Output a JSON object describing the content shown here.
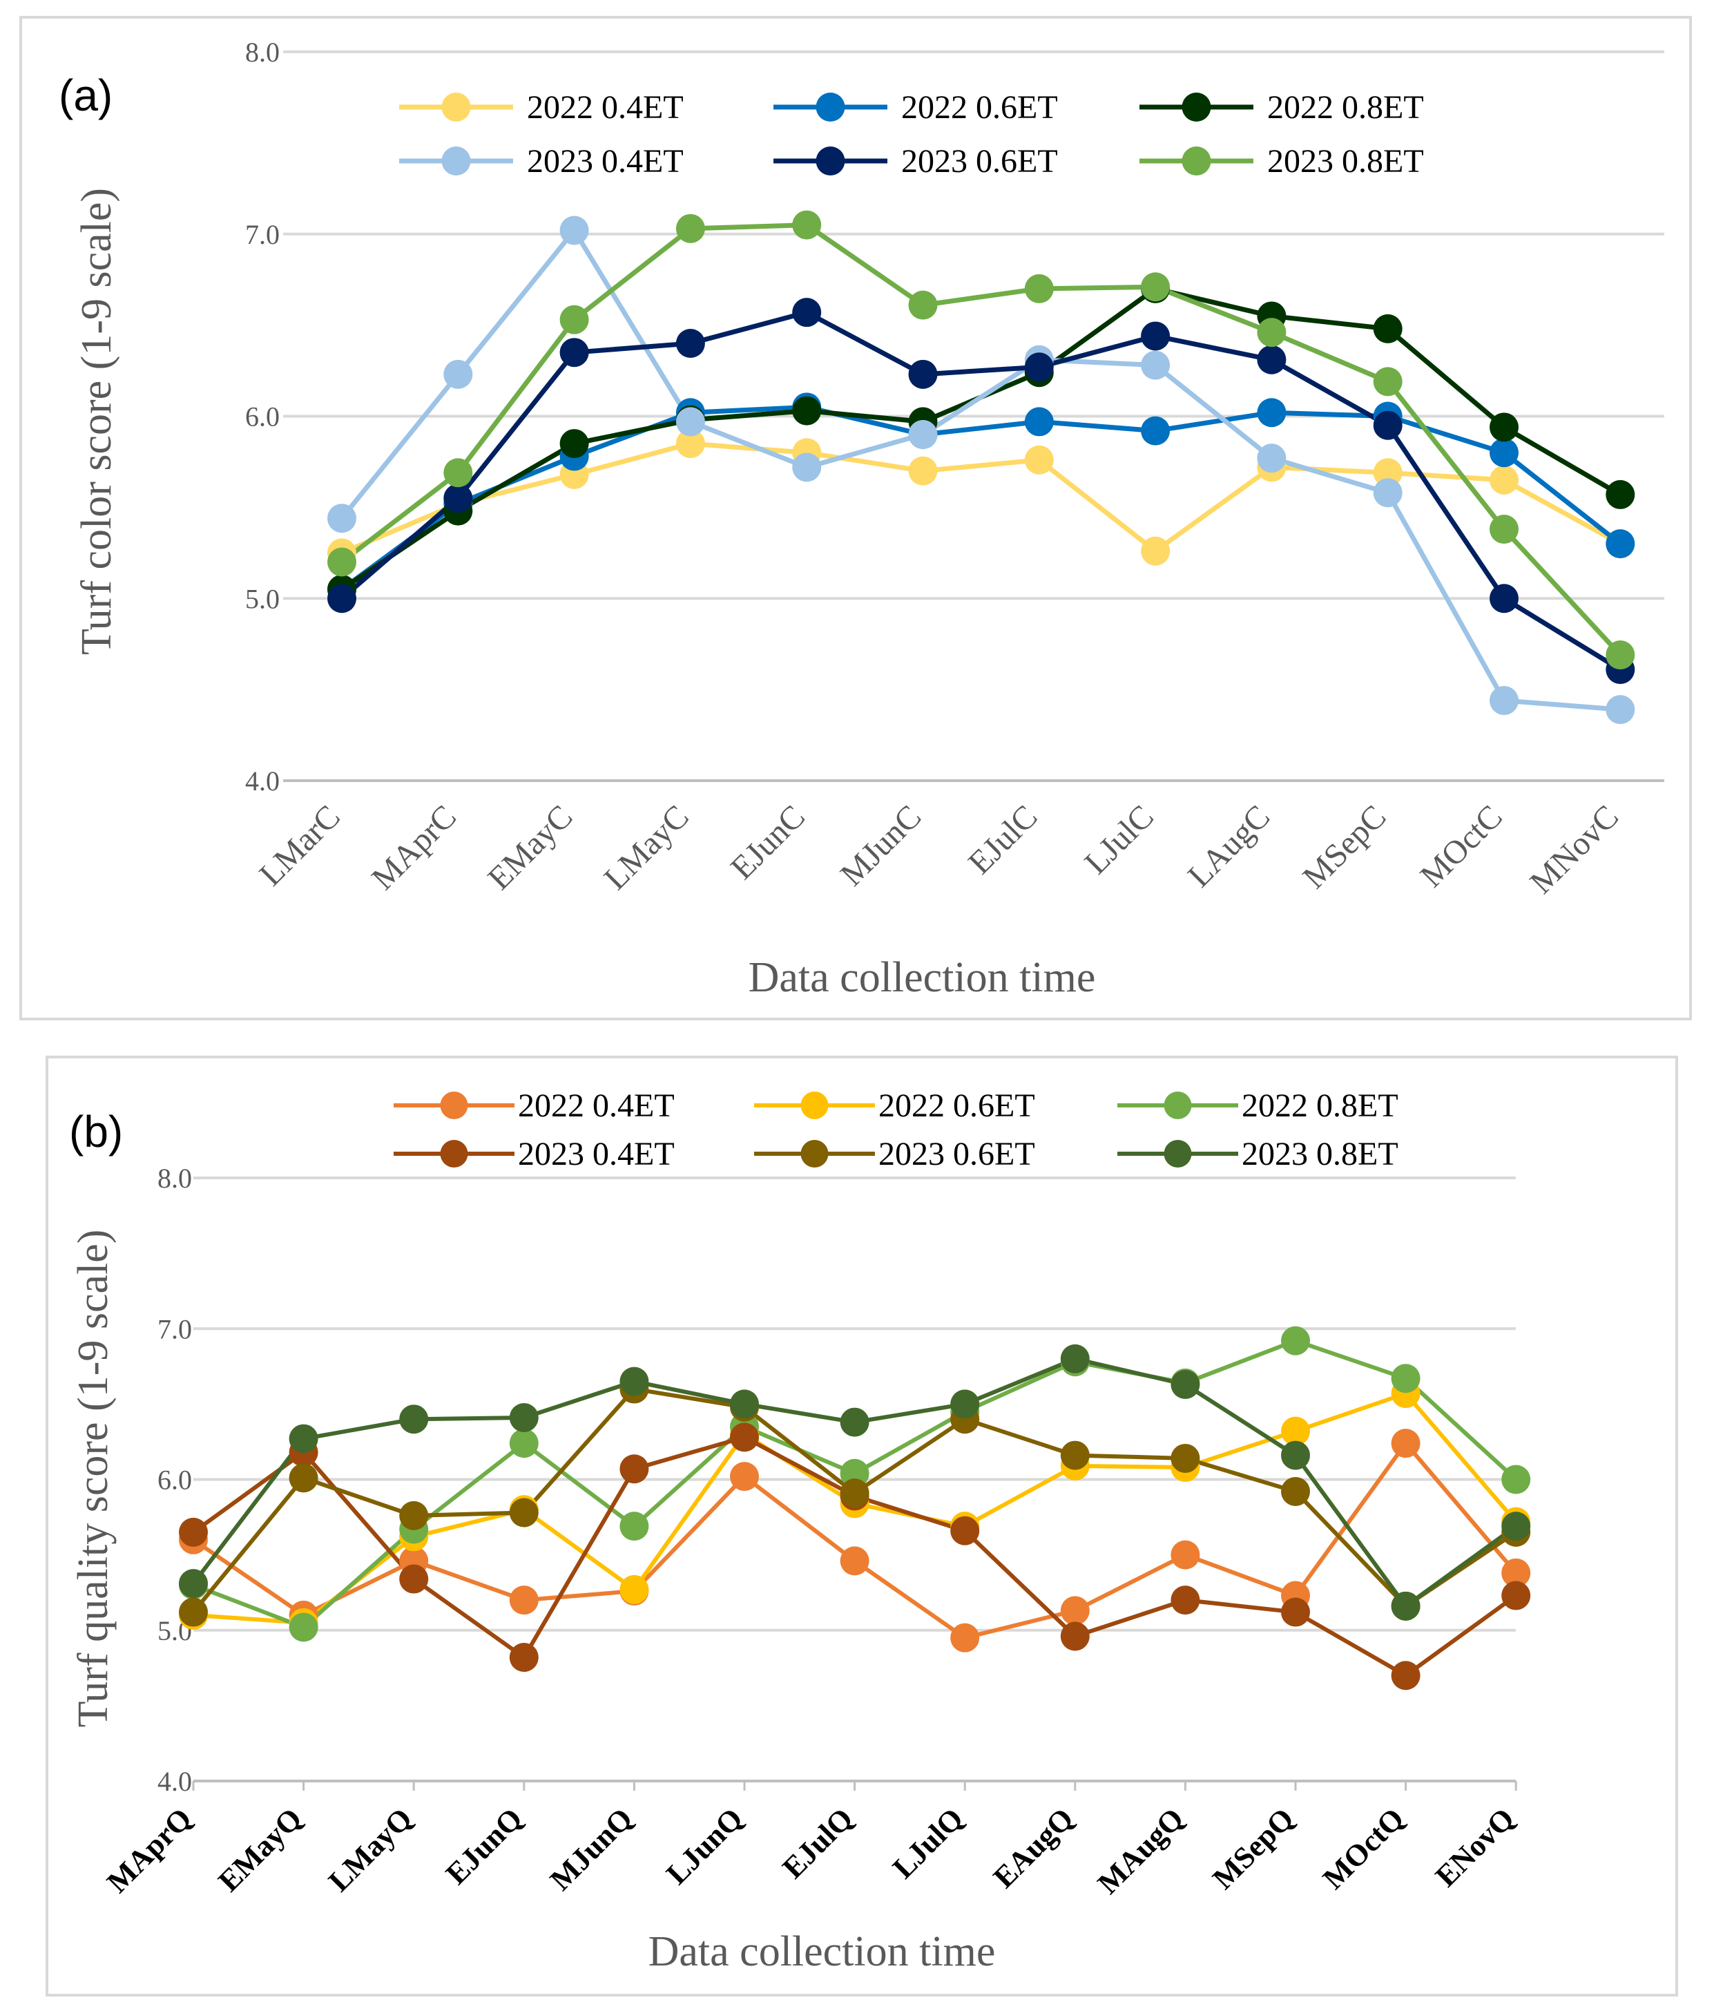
{
  "chart_data": [
    {
      "type": "line",
      "panel_label": "(a)",
      "xlabel": "Data collection time",
      "ylabel": "Turf color score (1-9 scale)",
      "ylim": [
        4.0,
        8.0
      ],
      "yticks": [
        "4.0",
        "5.0",
        "6.0",
        "7.0",
        "8.0"
      ],
      "grid": true,
      "legend_position": "top",
      "categories": [
        "LMarC",
        "MAprC",
        "EMayC",
        "LMayC",
        "EJunC",
        "MJunC",
        "EJulC",
        "LJulC",
        "LAugC",
        "MSepC",
        "MOctC",
        "MNovC"
      ],
      "series": [
        {
          "name": "2022 0.4ET",
          "color": "#FFD966",
          "values": [
            5.25,
            5.52,
            5.68,
            5.85,
            5.8,
            5.7,
            5.76,
            5.26,
            5.72,
            5.69,
            5.65,
            5.3
          ]
        },
        {
          "name": "2022 0.6ET",
          "color": "#0070C0",
          "values": [
            5.05,
            5.52,
            5.78,
            6.02,
            6.05,
            5.9,
            5.97,
            5.92,
            6.02,
            6.0,
            5.8,
            5.3
          ]
        },
        {
          "name": "2022 0.8ET",
          "color": "#003300",
          "values": [
            5.05,
            5.48,
            5.85,
            5.98,
            6.03,
            5.97,
            6.24,
            6.7,
            6.55,
            6.48,
            5.94,
            5.57
          ]
        },
        {
          "name": "2023 0.4ET",
          "color": "#9DC3E6",
          "values": [
            5.44,
            6.23,
            7.02,
            5.97,
            5.72,
            5.9,
            6.31,
            6.28,
            5.77,
            5.58,
            4.44,
            4.39
          ]
        },
        {
          "name": "2023 0.6ET",
          "color": "#002060",
          "values": [
            5.0,
            5.55,
            6.35,
            6.4,
            6.57,
            6.23,
            6.27,
            6.44,
            6.31,
            5.95,
            5.0,
            4.61
          ]
        },
        {
          "name": "2023 0.8ET",
          "color": "#70AD47",
          "values": [
            5.2,
            5.69,
            6.53,
            7.03,
            7.05,
            6.61,
            6.7,
            6.71,
            6.46,
            6.19,
            5.38,
            4.69
          ]
        }
      ]
    },
    {
      "type": "line",
      "panel_label": "(b)",
      "xlabel": "Data collection time",
      "ylabel": "Turf quality score (1-9 scale)",
      "ylim": [
        4.0,
        8.0
      ],
      "yticks": [
        "4.0",
        "5.0",
        "6.0",
        "7.0",
        "8.0"
      ],
      "grid": true,
      "legend_position": "top",
      "categories": [
        "MAprQ",
        "EMayQ",
        "LMayQ",
        "EJunQ",
        "MJunQ",
        "LJunQ",
        "EJulQ",
        "LJulQ",
        "EAugQ",
        "MAugQ",
        "MSepQ",
        "MOctQ",
        "ENovQ"
      ],
      "series": [
        {
          "name": "2022 0.4ET",
          "color": "#ED7D31",
          "values": [
            5.6,
            5.1,
            5.46,
            5.2,
            5.26,
            6.02,
            5.46,
            4.95,
            5.13,
            5.5,
            5.23,
            6.24,
            5.38
          ]
        },
        {
          "name": "2022 0.6ET",
          "color": "#FFC000",
          "values": [
            5.1,
            5.05,
            5.62,
            5.8,
            5.27,
            6.3,
            5.84,
            5.69,
            6.09,
            6.08,
            6.32,
            6.57,
            5.72
          ]
        },
        {
          "name": "2022 0.8ET",
          "color": "#70AD47",
          "values": [
            5.3,
            5.02,
            5.67,
            6.24,
            5.69,
            6.35,
            6.04,
            6.45,
            6.78,
            6.64,
            6.92,
            6.67,
            6.0
          ]
        },
        {
          "name": "2023 0.4ET",
          "color": "#9E480E",
          "values": [
            5.65,
            6.18,
            5.34,
            4.82,
            6.07,
            6.28,
            5.89,
            5.66,
            4.96,
            5.2,
            5.12,
            4.7,
            5.23
          ]
        },
        {
          "name": "2023 0.6ET",
          "color": "#806000",
          "values": [
            5.12,
            6.01,
            5.76,
            5.78,
            6.6,
            6.48,
            5.91,
            6.4,
            6.16,
            6.14,
            5.92,
            5.16,
            5.65
          ]
        },
        {
          "name": "2023 0.8ET",
          "color": "#43682B",
          "values": [
            5.31,
            6.27,
            6.4,
            6.41,
            6.65,
            6.5,
            6.38,
            6.5,
            6.8,
            6.63,
            6.16,
            5.16,
            5.69
          ]
        }
      ]
    }
  ]
}
